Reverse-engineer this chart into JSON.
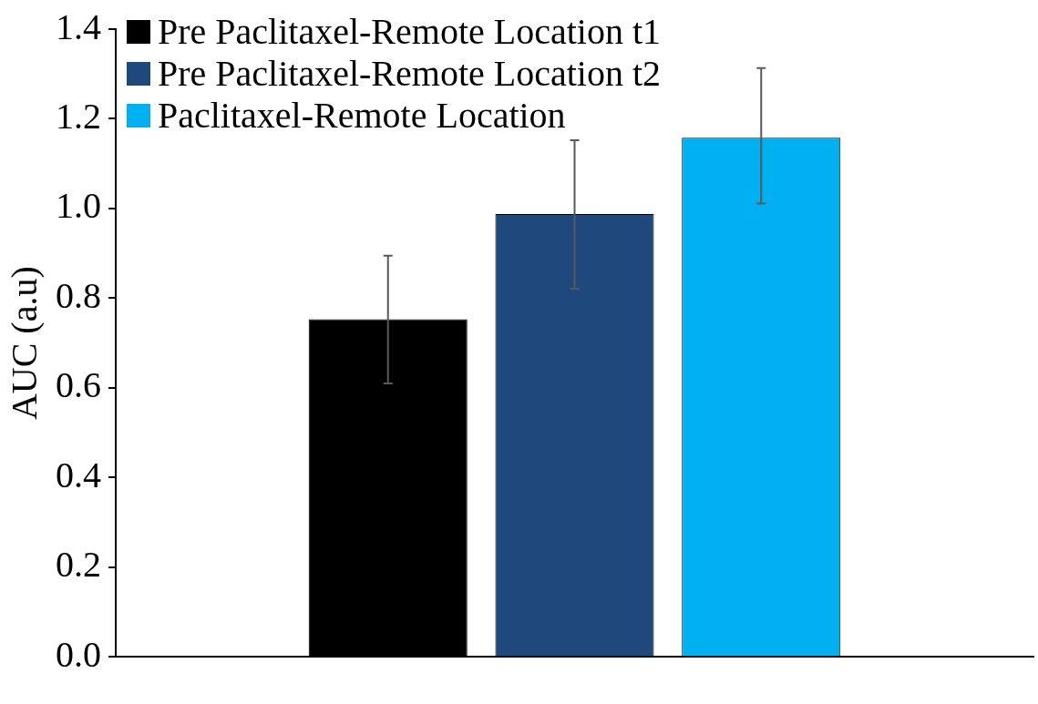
{
  "chart_data": {
    "type": "bar",
    "ylabel": "AUC (a.u)",
    "categories": [
      null
    ],
    "series": [
      {
        "name": "Pre Paclitaxel-Remote Location t1",
        "color": "#000000",
        "values": [
          0.753
        ],
        "errors": [
          [
            0.61,
            0.895
          ]
        ]
      },
      {
        "name": "Pre Paclitaxel-Remote Location t2",
        "color": "#1f497d",
        "values": [
          0.988
        ],
        "errors": [
          [
            0.821,
            1.152
          ]
        ]
      },
      {
        "name": "Paclitaxel-Remote Location",
        "color": "#00b0f0",
        "values": [
          1.158
        ],
        "errors": [
          [
            1.011,
            1.313
          ]
        ]
      }
    ],
    "ylim": [
      0,
      1.4
    ],
    "yticks": [
      {
        "value": 0,
        "label": "0.0"
      },
      0.2,
      0.4,
      0.6,
      0.8,
      {
        "value": 1,
        "label": "1.0"
      },
      1.2,
      1.4
    ],
    "grid": false,
    "legend": "top left"
  }
}
